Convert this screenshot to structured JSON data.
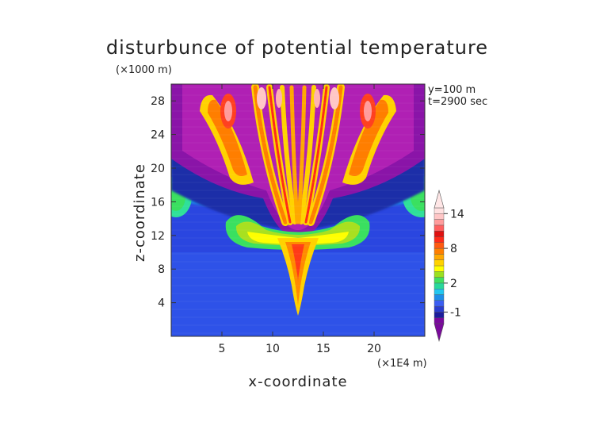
{
  "chart_data": {
    "type": "heatmap",
    "title": "disturbunce of potential temperature",
    "xlabel": "x-coordinate",
    "ylabel": "z-coordinate",
    "x_unit": "(×1E4 m)",
    "y_unit": "(×1000 m)",
    "annotations": [
      "y=100 m",
      "t=2900 sec"
    ],
    "xlim": [
      0,
      25
    ],
    "ylim": [
      0,
      30
    ],
    "xticks": [
      5,
      10,
      15,
      20
    ],
    "yticks": [
      4,
      8,
      12,
      16,
      20,
      24,
      28
    ],
    "colorbar": {
      "levels": [
        -2,
        -1.5,
        -1,
        -0.5,
        0,
        0.5,
        1,
        2,
        3,
        4,
        5,
        6,
        7,
        8,
        9,
        10,
        11,
        12,
        13,
        14,
        16
      ],
      "labeled_ticks": [
        "-1",
        "2",
        "8",
        "14"
      ],
      "colors": [
        "#7a0a9c",
        "#1c1c9c",
        "#2a3ccf",
        "#3b5ef2",
        "#1e8ee8",
        "#22c7f0",
        "#28d89a",
        "#40e060",
        "#9ae020",
        "#ffff00",
        "#ffd200",
        "#ffa800",
        "#ff7e00",
        "#ff5a10",
        "#ff2a18",
        "#e01010",
        "#ff6060",
        "#ff9c9c",
        "#ffc6c6",
        "#ffe0e0"
      ]
    },
    "field_description": "Vertical cross-section of potential temperature disturbance; gravity-wave fan pattern centred near x=12.5, positive values (up to ~14) in upper lobes, negative values (~-1.5) in purple regions, near-zero background below z=10."
  }
}
